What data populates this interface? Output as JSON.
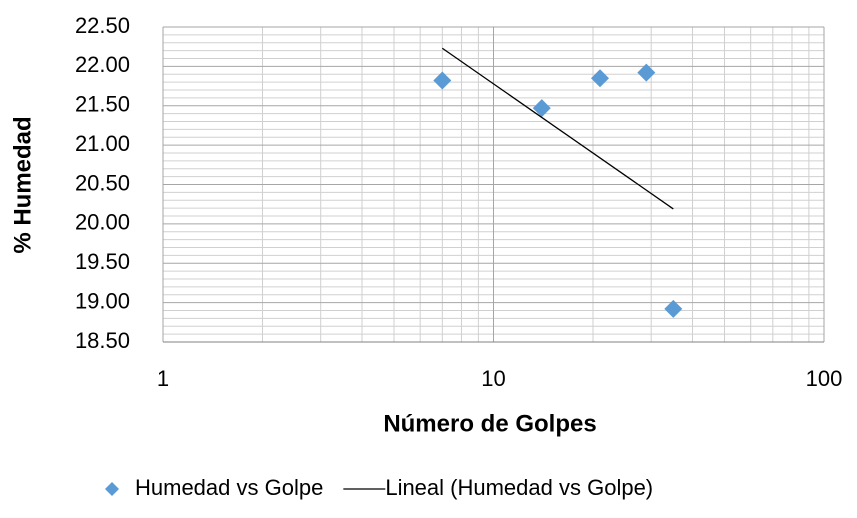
{
  "chart_data": {
    "type": "scatter",
    "xlabel": "Número de Golpes",
    "ylabel": "% Humedad",
    "series": [
      {
        "name": "Humedad vs Golpe",
        "color": "#5b9bd5",
        "x": [
          7,
          14,
          21,
          29,
          35
        ],
        "values": [
          21.82,
          21.47,
          21.85,
          21.92,
          18.92
        ]
      },
      {
        "name": "Lineal (Humedad vs Golpe)",
        "color": "#000000",
        "kind": "line",
        "x": [
          7,
          35
        ],
        "values": [
          22.23,
          20.19
        ]
      }
    ],
    "xscale": "log",
    "xlim": [
      1,
      100
    ],
    "xticks": [
      1,
      10,
      100
    ],
    "xminorticks": [
      2,
      3,
      4,
      5,
      6,
      7,
      8,
      9,
      20,
      30,
      40,
      50,
      60,
      70,
      80,
      90
    ],
    "ylim": [
      18.5,
      22.5
    ],
    "yticks": [
      {
        "value": 18.5,
        "label": "18.50"
      },
      {
        "value": 19,
        "label": "19.00"
      },
      {
        "value": 19.5,
        "label": "19.50"
      },
      {
        "value": 20,
        "label": "20.00"
      },
      {
        "value": 20.5,
        "label": "20.50"
      },
      {
        "value": 21,
        "label": "21.00"
      },
      {
        "value": 21.5,
        "label": "21.50"
      },
      {
        "value": 22,
        "label": "22.00"
      },
      {
        "value": 22.5,
        "label": "22.50"
      }
    ],
    "yminorticks": [
      18.6,
      18.7,
      18.8,
      18.9,
      19.1,
      19.2,
      19.3,
      19.4,
      19.6,
      19.7,
      19.8,
      19.9,
      20.1,
      20.2,
      20.3,
      20.4,
      20.6,
      20.7,
      20.8,
      20.9,
      21.1,
      21.2,
      21.3,
      21.4,
      21.6,
      21.7,
      21.8,
      21.9,
      22.1,
      22.2,
      22.3,
      22.4
    ],
    "grid": true,
    "legend": "bottom"
  }
}
